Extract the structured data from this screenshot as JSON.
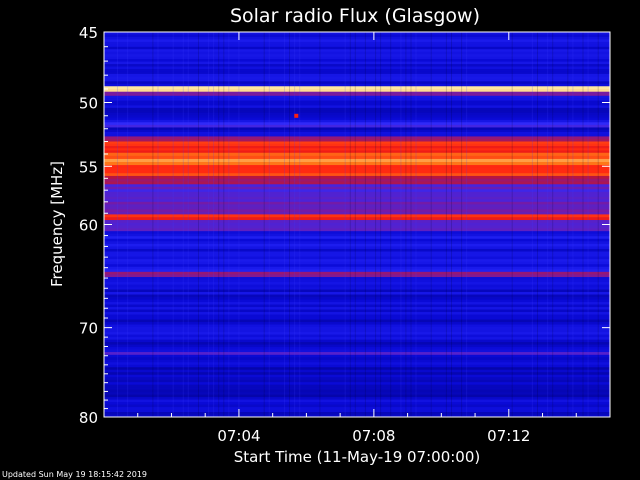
{
  "chart_data": {
    "type": "heatmap",
    "title": "Solar radio Flux (Glasgow)",
    "xlabel": "Start Time (11-May-19 07:00:00)",
    "ylabel": "Frequency [MHz]",
    "x_ticks": [
      "07:04",
      "07:08",
      "07:12"
    ],
    "x_tick_minutes": [
      4,
      8,
      12
    ],
    "xlim_minutes": [
      0,
      15
    ],
    "y_ticks": [
      45,
      50,
      55,
      60,
      70,
      80
    ],
    "ylim": [
      45,
      80
    ],
    "y_scale": "log",
    "colormap": [
      "#00007a",
      "#0a0ad6",
      "#2a2aff",
      "#7a1aa0",
      "#c81428",
      "#ff2010",
      "#ff7a18",
      "#ffe8a0"
    ],
    "bands": [
      {
        "freq": [
          45.0,
          48.8
        ],
        "level": 0.16
      },
      {
        "freq": [
          48.8,
          49.2
        ],
        "level": 1.0
      },
      {
        "freq": [
          49.2,
          49.5
        ],
        "level": 0.45
      },
      {
        "freq": [
          49.5,
          51.5
        ],
        "level": 0.14
      },
      {
        "freq": [
          51.5,
          51.9
        ],
        "level": 0.3
      },
      {
        "freq": [
          51.9,
          52.6
        ],
        "level": 0.13
      },
      {
        "freq": [
          52.6,
          53.0
        ],
        "level": 0.5
      },
      {
        "freq": [
          53.0,
          53.9
        ],
        "level": 0.72
      },
      {
        "freq": [
          53.9,
          54.4
        ],
        "level": 0.8
      },
      {
        "freq": [
          54.4,
          54.9
        ],
        "level": 0.88
      },
      {
        "freq": [
          54.9,
          55.8
        ],
        "level": 0.74
      },
      {
        "freq": [
          55.8,
          56.5
        ],
        "level": 0.55
      },
      {
        "freq": [
          56.5,
          59.1
        ],
        "level": 0.38
      },
      {
        "freq": [
          59.1,
          59.6
        ],
        "level": 0.72
      },
      {
        "freq": [
          59.6,
          60.6
        ],
        "level": 0.36
      },
      {
        "freq": [
          60.6,
          64.4
        ],
        "level": 0.18
      },
      {
        "freq": [
          64.4,
          64.9
        ],
        "level": 0.48
      },
      {
        "freq": [
          64.9,
          72.6
        ],
        "level": 0.15
      },
      {
        "freq": [
          72.6,
          72.9
        ],
        "level": 0.34
      },
      {
        "freq": [
          72.9,
          80.0
        ],
        "level": 0.12
      }
    ],
    "spots": [
      {
        "minute": 5.7,
        "freq": 51.0,
        "level": 0.7
      }
    ]
  },
  "footer": {
    "updated": "Updated Sun May 19 18:15:42 2019"
  }
}
